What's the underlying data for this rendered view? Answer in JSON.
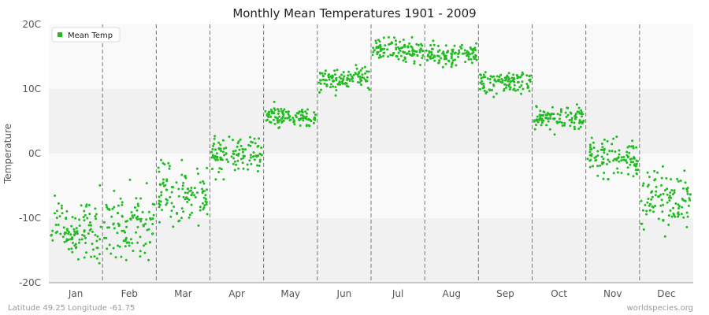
{
  "chart_data": {
    "type": "scatter",
    "title": "Monthly Mean Temperatures 1901 - 2009",
    "ylabel": "Temperature",
    "xlabel": "",
    "categories": [
      "Jan",
      "Feb",
      "Mar",
      "Apr",
      "May",
      "Jun",
      "Jul",
      "Aug",
      "Sep",
      "Oct",
      "Nov",
      "Dec"
    ],
    "y_ticks": [
      "-20C",
      "-10C",
      "0C",
      "10C",
      "20C"
    ],
    "ylim": [
      -20,
      20
    ],
    "legend": {
      "label": "Mean Temp",
      "position": "top-left"
    },
    "marker_color": "#22bb22",
    "years": 109,
    "monthly_stats": [
      {
        "month": "Jan",
        "mean": -11.8,
        "spread": 2.6,
        "min": -18.0,
        "max": -4.0
      },
      {
        "month": "Feb",
        "mean": -11.2,
        "spread": 2.8,
        "min": -16.5,
        "max": -3.5
      },
      {
        "month": "Mar",
        "mean": -6.0,
        "spread": 2.2,
        "min": -12.0,
        "max": -1.0
      },
      {
        "month": "Apr",
        "mean": 0.0,
        "spread": 1.3,
        "min": -4.0,
        "max": 3.5
      },
      {
        "month": "May",
        "mean": 5.6,
        "spread": 0.8,
        "min": 3.5,
        "max": 8.0
      },
      {
        "month": "Jun",
        "mean": 11.5,
        "spread": 0.9,
        "min": 9.0,
        "max": 14.0
      },
      {
        "month": "Jul",
        "mean": 15.8,
        "spread": 0.9,
        "min": 13.5,
        "max": 18.0
      },
      {
        "month": "Aug",
        "mean": 15.3,
        "spread": 0.9,
        "min": 12.5,
        "max": 18.0
      },
      {
        "month": "Sep",
        "mean": 11.0,
        "spread": 0.9,
        "min": 8.5,
        "max": 13.5
      },
      {
        "month": "Oct",
        "mean": 5.5,
        "spread": 0.9,
        "min": 2.5,
        "max": 8.0
      },
      {
        "month": "Nov",
        "mean": -0.6,
        "spread": 1.5,
        "min": -4.0,
        "max": 3.0
      },
      {
        "month": "Dec",
        "mean": -7.5,
        "spread": 2.2,
        "min": -14.0,
        "max": -2.0
      }
    ]
  },
  "footer": {
    "location": "Latitude 49.25 Longitude -61.75",
    "source": "worldspecies.org"
  }
}
